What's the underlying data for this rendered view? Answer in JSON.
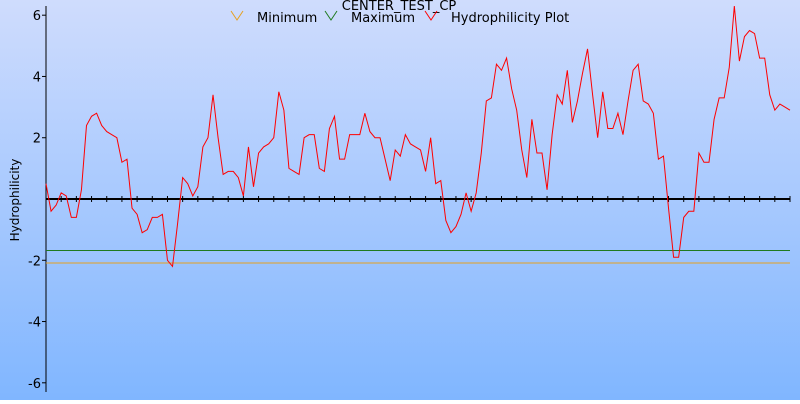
{
  "chart_data": {
    "type": "line",
    "title": "CENTER_TEST_CP",
    "ylabel": "Hydrophilicity",
    "xlabel": "",
    "ylim": [
      -6.3,
      6.3
    ],
    "yticks": [
      -6,
      -4,
      -2,
      2,
      4,
      6
    ],
    "grid": false,
    "legend_position": "top",
    "colors": {
      "minimum": "#e6a020",
      "maximum": "#1f7a1f",
      "hydrophilicity": "#ff0000",
      "zero_line": "#000000",
      "background_top": "#cfdcfd",
      "background_bottom": "#80b6ff"
    },
    "series": [
      {
        "name": "Minimum",
        "type": "constant",
        "value": -2.09
      },
      {
        "name": "Maximum",
        "type": "constant",
        "value": -1.68
      },
      {
        "name": "Hydrophilicity Plot",
        "values": [
          0.5,
          -0.4,
          -0.2,
          0.2,
          0.1,
          -0.6,
          -0.6,
          0.3,
          2.4,
          2.7,
          2.8,
          2.4,
          2.2,
          2.1,
          2.0,
          1.2,
          1.3,
          -0.3,
          -0.5,
          -1.1,
          -1.0,
          -0.6,
          -0.6,
          -0.5,
          -2.0,
          -2.2,
          -0.8,
          0.7,
          0.5,
          0.1,
          0.4,
          1.7,
          2.0,
          3.4,
          2.0,
          0.8,
          0.9,
          0.9,
          0.7,
          0.1,
          1.7,
          0.4,
          1.5,
          1.7,
          1.8,
          2.0,
          3.5,
          2.9,
          1.0,
          0.9,
          0.8,
          2.0,
          2.1,
          2.1,
          1.0,
          0.9,
          2.3,
          2.7,
          1.3,
          1.3,
          2.1,
          2.1,
          2.1,
          2.8,
          2.2,
          2.0,
          2.0,
          1.3,
          0.6,
          1.6,
          1.4,
          2.1,
          1.8,
          1.7,
          1.6,
          0.9,
          2.0,
          0.5,
          0.6,
          -0.7,
          -1.1,
          -0.9,
          -0.5,
          0.2,
          -0.4,
          0.2,
          1.5,
          3.2,
          3.3,
          4.4,
          4.2,
          4.6,
          3.6,
          2.9,
          1.6,
          0.7,
          2.6,
          1.5,
          1.5,
          0.3,
          2.1,
          3.4,
          3.1,
          4.2,
          2.5,
          3.2,
          4.1,
          4.9,
          3.4,
          2.0,
          3.5,
          2.3,
          2.3,
          2.8,
          2.1,
          3.2,
          4.2,
          4.4,
          3.2,
          3.1,
          2.8,
          1.3,
          1.4,
          -0.3,
          -1.9,
          -1.9,
          -0.6,
          -0.4,
          -0.4,
          1.5,
          1.2,
          1.2,
          2.6,
          3.3,
          3.3,
          4.3,
          6.3,
          4.5,
          5.3,
          5.5,
          5.4,
          4.6,
          4.6,
          3.4,
          2.9,
          3.1,
          3.0,
          2.9
        ]
      }
    ]
  }
}
